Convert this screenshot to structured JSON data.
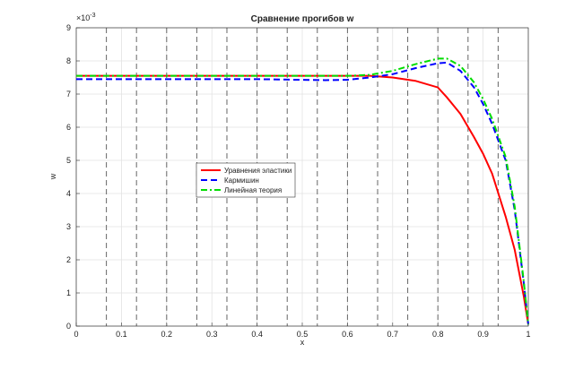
{
  "chart_data": {
    "type": "line",
    "title": "Сравнение прогибов w",
    "x_label": "x",
    "y_label": "w",
    "y_multiplier": {
      "base": "×10",
      "exponent": "-3"
    },
    "xlim": [
      0,
      1
    ],
    "ylim": [
      0,
      9
    ],
    "xticks": [
      0,
      0.1,
      0.2,
      0.3,
      0.4,
      0.5,
      0.6,
      0.7,
      0.8,
      0.9,
      1
    ],
    "yticks": [
      0,
      1,
      2,
      3,
      4,
      5,
      6,
      7,
      8,
      9
    ],
    "grid": true,
    "legend_position": "center-left",
    "vlines": [
      0.0667,
      0.1333,
      0.2,
      0.2667,
      0.3333,
      0.4,
      0.4667,
      0.5333,
      0.6,
      0.6667,
      0.7333,
      0.8,
      0.8667,
      0.9333
    ],
    "vline_color": "#666666",
    "x": [
      0,
      0.1,
      0.2,
      0.3,
      0.4,
      0.5,
      0.55,
      0.6,
      0.65,
      0.7,
      0.75,
      0.8,
      0.82,
      0.85,
      0.88,
      0.9,
      0.92,
      0.95,
      0.97,
      0.99,
      1
    ],
    "series": [
      {
        "name": "Уравнения эластики",
        "color": "#ff0000",
        "dash": "solid",
        "values": [
          7.55,
          7.55,
          7.55,
          7.55,
          7.55,
          7.55,
          7.55,
          7.55,
          7.55,
          7.5,
          7.4,
          7.2,
          6.9,
          6.4,
          5.7,
          5.2,
          4.6,
          3.3,
          2.3,
          0.9,
          0.05
        ]
      },
      {
        "name": "Кармишин",
        "color": "#0000ff",
        "dash": "dash",
        "values": [
          7.45,
          7.45,
          7.45,
          7.45,
          7.45,
          7.43,
          7.42,
          7.43,
          7.5,
          7.6,
          7.78,
          7.93,
          7.95,
          7.7,
          7.2,
          6.7,
          6.1,
          5.0,
          3.5,
          1.3,
          0.05
        ]
      },
      {
        "name": "Линейная теория",
        "color": "#00dd00",
        "dash": "dashdot",
        "values": [
          7.55,
          7.55,
          7.55,
          7.55,
          7.55,
          7.55,
          7.55,
          7.55,
          7.58,
          7.7,
          7.9,
          8.07,
          8.07,
          7.85,
          7.35,
          6.85,
          6.25,
          5.1,
          3.6,
          1.35,
          0.05
        ]
      }
    ]
  }
}
